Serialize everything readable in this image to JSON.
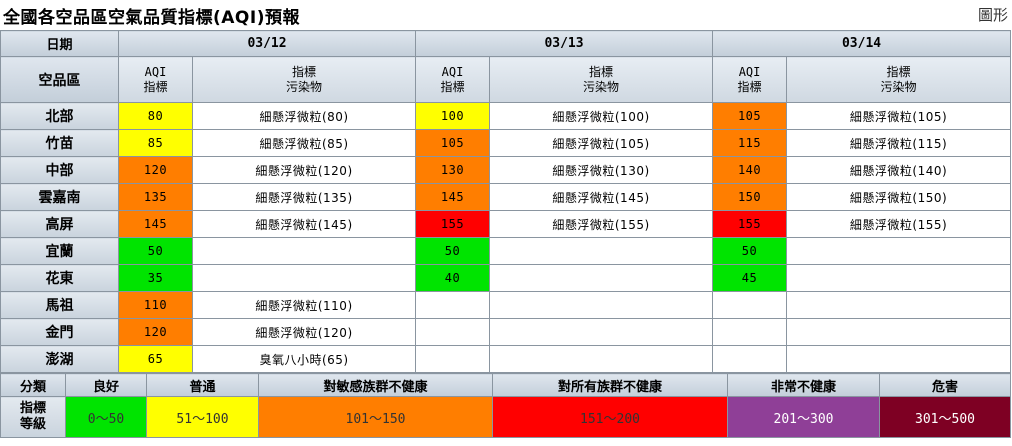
{
  "title": "全國各空品區空氣品質指標(AQI)預報",
  "graph_link": "圖形",
  "table": {
    "date_header": "日期",
    "region_header": "空品區",
    "aqi_header": [
      "AQI",
      "指標"
    ],
    "pollutant_header": [
      "指標",
      "污染物"
    ],
    "dates": [
      "03/12",
      "03/13",
      "03/14"
    ],
    "rows": [
      {
        "region": "北部",
        "days": [
          {
            "aqi": "80",
            "color": "#ffff00",
            "pollutant": "細懸浮微粒(80)"
          },
          {
            "aqi": "100",
            "color": "#ffff00",
            "pollutant": "細懸浮微粒(100)"
          },
          {
            "aqi": "105",
            "color": "#ff7e00",
            "pollutant": "細懸浮微粒(105)"
          }
        ]
      },
      {
        "region": "竹苗",
        "days": [
          {
            "aqi": "85",
            "color": "#ffff00",
            "pollutant": "細懸浮微粒(85)"
          },
          {
            "aqi": "105",
            "color": "#ff7e00",
            "pollutant": "細懸浮微粒(105)"
          },
          {
            "aqi": "115",
            "color": "#ff7e00",
            "pollutant": "細懸浮微粒(115)"
          }
        ]
      },
      {
        "region": "中部",
        "days": [
          {
            "aqi": "120",
            "color": "#ff7e00",
            "pollutant": "細懸浮微粒(120)"
          },
          {
            "aqi": "130",
            "color": "#ff7e00",
            "pollutant": "細懸浮微粒(130)"
          },
          {
            "aqi": "140",
            "color": "#ff7e00",
            "pollutant": "細懸浮微粒(140)"
          }
        ]
      },
      {
        "region": "雲嘉南",
        "days": [
          {
            "aqi": "135",
            "color": "#ff7e00",
            "pollutant": "細懸浮微粒(135)"
          },
          {
            "aqi": "145",
            "color": "#ff7e00",
            "pollutant": "細懸浮微粒(145)"
          },
          {
            "aqi": "150",
            "color": "#ff7e00",
            "pollutant": "細懸浮微粒(150)"
          }
        ]
      },
      {
        "region": "高屏",
        "days": [
          {
            "aqi": "145",
            "color": "#ff7e00",
            "pollutant": "細懸浮微粒(145)"
          },
          {
            "aqi": "155",
            "color": "#ff0000",
            "pollutant": "細懸浮微粒(155)"
          },
          {
            "aqi": "155",
            "color": "#ff0000",
            "pollutant": "細懸浮微粒(155)"
          }
        ]
      },
      {
        "region": "宜蘭",
        "days": [
          {
            "aqi": "50",
            "color": "#00e400",
            "pollutant": ""
          },
          {
            "aqi": "50",
            "color": "#00e400",
            "pollutant": ""
          },
          {
            "aqi": "50",
            "color": "#00e400",
            "pollutant": ""
          }
        ]
      },
      {
        "region": "花東",
        "days": [
          {
            "aqi": "35",
            "color": "#00e400",
            "pollutant": ""
          },
          {
            "aqi": "40",
            "color": "#00e400",
            "pollutant": ""
          },
          {
            "aqi": "45",
            "color": "#00e400",
            "pollutant": ""
          }
        ]
      },
      {
        "region": "馬祖",
        "days": [
          {
            "aqi": "110",
            "color": "#ff7e00",
            "pollutant": "細懸浮微粒(110)"
          },
          {
            "aqi": "",
            "color": "#ffffff",
            "pollutant": ""
          },
          {
            "aqi": "",
            "color": "#ffffff",
            "pollutant": ""
          }
        ]
      },
      {
        "region": "金門",
        "days": [
          {
            "aqi": "120",
            "color": "#ff7e00",
            "pollutant": "細懸浮微粒(120)"
          },
          {
            "aqi": "",
            "color": "#ffffff",
            "pollutant": ""
          },
          {
            "aqi": "",
            "color": "#ffffff",
            "pollutant": ""
          }
        ]
      },
      {
        "region": "澎湖",
        "days": [
          {
            "aqi": "65",
            "color": "#ffff00",
            "pollutant": "臭氧八小時(65)"
          },
          {
            "aqi": "",
            "color": "#ffffff",
            "pollutant": ""
          },
          {
            "aqi": "",
            "color": "#ffffff",
            "pollutant": ""
          }
        ]
      }
    ]
  },
  "legend": {
    "category_label": "分類",
    "level_label": [
      "指標",
      "等級"
    ],
    "levels": [
      {
        "name": "良好",
        "range": "0～50",
        "color": "#00e400",
        "text_color": "#333333"
      },
      {
        "name": "普通",
        "range": "51～100",
        "color": "#ffff00",
        "text_color": "#333333"
      },
      {
        "name": "對敏感族群不健康",
        "range": "101～150",
        "color": "#ff7e00",
        "text_color": "#333333"
      },
      {
        "name": "對所有族群不健康",
        "range": "151～200",
        "color": "#ff0000",
        "text_color": "#333333"
      },
      {
        "name": "非常不健康",
        "range": "201～300",
        "color": "#8f3f97",
        "text_color": "#ffffff"
      },
      {
        "name": "危害",
        "range": "301～500",
        "color": "#7e0023",
        "text_color": "#ffffff"
      }
    ]
  }
}
